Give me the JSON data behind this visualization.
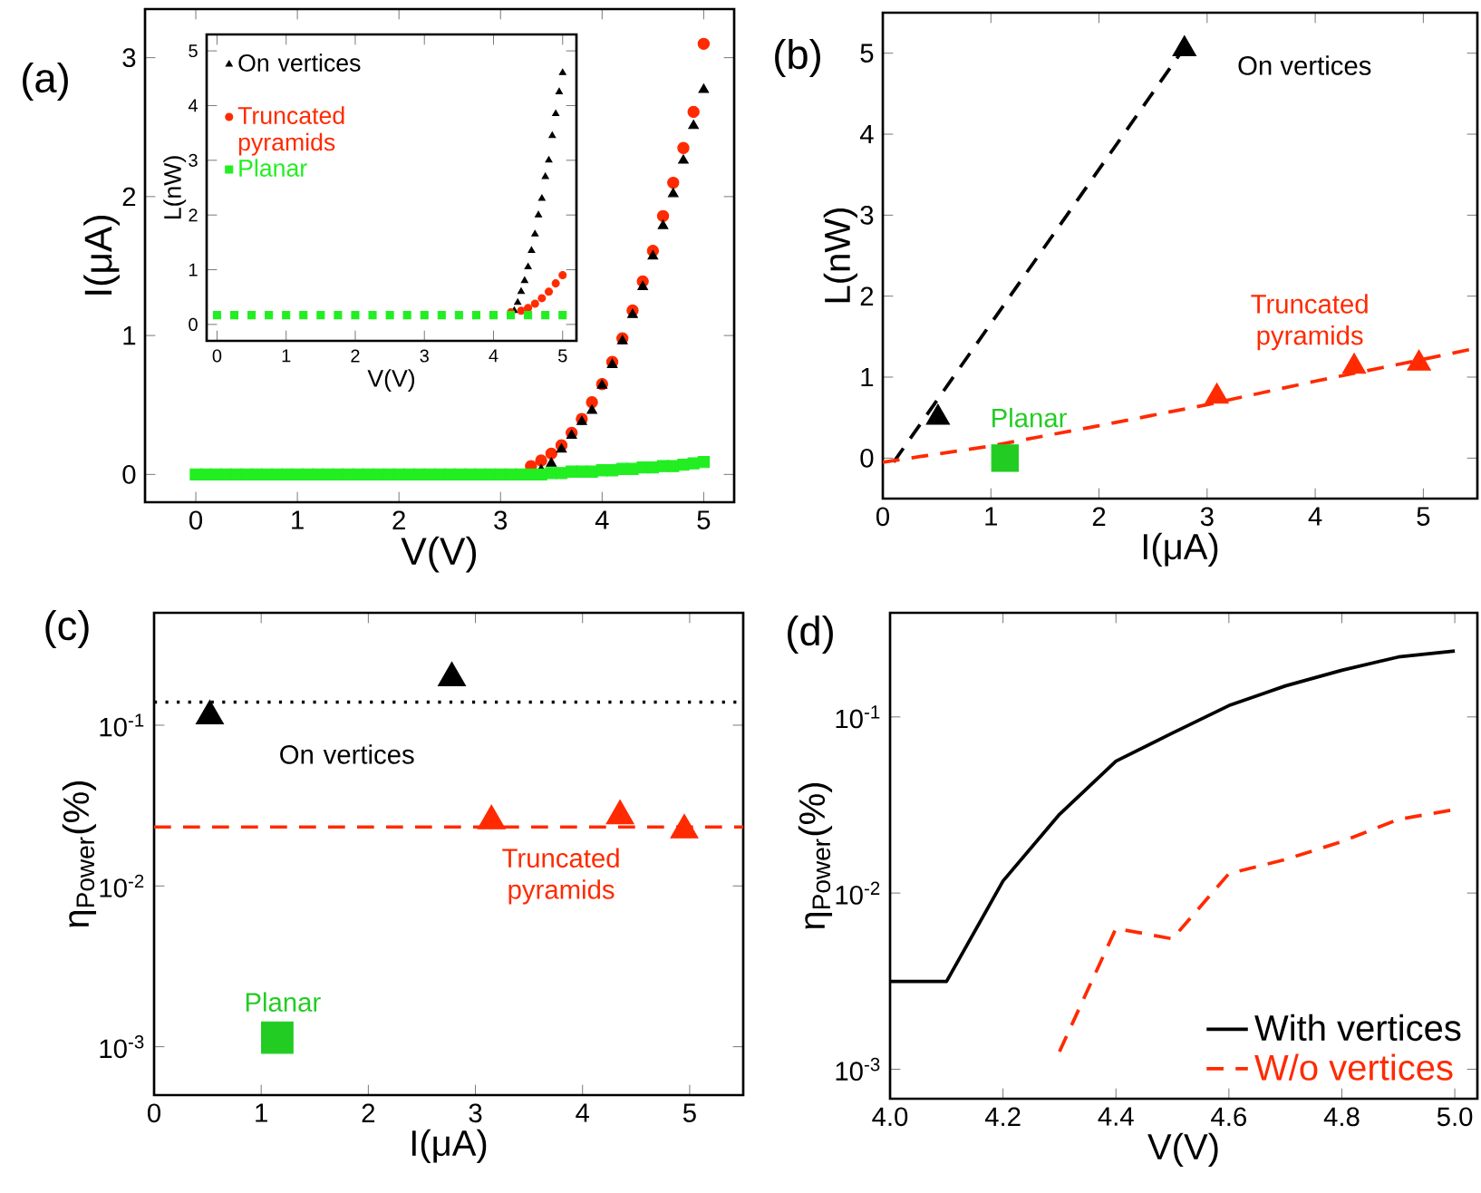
{
  "chart_data": [
    {
      "type": "scatter",
      "title": "(a)",
      "xlabel": "V(V)",
      "ylabel": "I(μA)",
      "xlim": [
        -0.5,
        5.3
      ],
      "ylim": [
        -0.2,
        3.35
      ],
      "xticks": [
        0,
        1,
        2,
        3,
        4,
        5
      ],
      "yticks": [
        0,
        1,
        2,
        3
      ],
      "x": [
        0,
        0.1,
        0.2,
        0.3,
        0.4,
        0.5,
        0.6,
        0.7,
        0.8,
        0.9,
        1.0,
        1.1,
        1.2,
        1.3,
        1.4,
        1.5,
        1.6,
        1.7,
        1.8,
        1.9,
        2.0,
        2.1,
        2.2,
        2.3,
        2.4,
        2.5,
        2.6,
        2.7,
        2.8,
        2.9,
        3.0,
        3.1,
        3.2,
        3.3,
        3.4,
        3.5,
        3.6,
        3.7,
        3.8,
        3.9,
        4.0,
        4.1,
        4.2,
        4.3,
        4.4,
        4.5,
        4.6,
        4.7,
        4.8,
        4.9,
        5.0
      ],
      "series": [
        {
          "color": "#ff2a00",
          "marker": "circle",
          "values": [
            null,
            null,
            null,
            null,
            null,
            null,
            null,
            null,
            null,
            null,
            null,
            null,
            null,
            null,
            null,
            null,
            null,
            null,
            null,
            null,
            null,
            null,
            null,
            null,
            null,
            null,
            null,
            null,
            null,
            null,
            null,
            null,
            null,
            0.06,
            0.1,
            0.15,
            0.21,
            0.3,
            0.4,
            0.52,
            0.65,
            0.81,
            0.98,
            1.18,
            1.39,
            1.61,
            1.86,
            2.1,
            2.35,
            2.61,
            3.1
          ]
        },
        {
          "color": "#000000",
          "marker": "triangle",
          "values": [
            null,
            null,
            null,
            null,
            null,
            null,
            null,
            null,
            null,
            null,
            null,
            null,
            null,
            null,
            null,
            null,
            null,
            null,
            null,
            null,
            null,
            null,
            null,
            null,
            null,
            null,
            null,
            null,
            null,
            null,
            null,
            null,
            null,
            null,
            0.03,
            0.08,
            0.18,
            0.28,
            0.38,
            0.46,
            0.64,
            0.79,
            0.96,
            1.15,
            1.35,
            1.57,
            1.79,
            2.02,
            2.26,
            2.51,
            2.77
          ]
        },
        {
          "color": "#22ee22",
          "marker": "square",
          "values": [
            0,
            0,
            0,
            0,
            0,
            0,
            0,
            0,
            0,
            0,
            0,
            0,
            0,
            0,
            0,
            0,
            0,
            0,
            0,
            0,
            0,
            0,
            0,
            0,
            0,
            0,
            0,
            0,
            0,
            0,
            0,
            0,
            0,
            0,
            0,
            0.01,
            0.01,
            0.02,
            0.02,
            0.02,
            0.03,
            0.03,
            0.04,
            0.04,
            0.05,
            0.05,
            0.06,
            0.06,
            0.07,
            0.08,
            0.09
          ]
        }
      ]
    },
    {
      "type": "scatter",
      "xlabel": "V(V)",
      "ylabel": "L(nW)",
      "xlim": [
        -0.15,
        5.2
      ],
      "ylim": [
        -0.3,
        5.3
      ],
      "xticks": [
        0,
        1,
        2,
        3,
        4,
        5
      ],
      "yticks": [
        0,
        1,
        2,
        3,
        4,
        5
      ],
      "legend": "top left",
      "series": [
        {
          "name": "On vertices",
          "color": "#000000",
          "marker": "triangle",
          "x": [
            4.3,
            4.35,
            4.4,
            4.45,
            4.5,
            4.55,
            4.6,
            4.65,
            4.7,
            4.75,
            4.8,
            4.85,
            4.9,
            4.95,
            5.0
          ],
          "values": [
            0.25,
            0.4,
            0.6,
            0.8,
            1.05,
            1.35,
            1.65,
            2.0,
            2.3,
            2.7,
            3.0,
            3.45,
            3.85,
            4.25,
            4.6
          ]
        },
        {
          "name": "Truncated pyramids",
          "color": "#ff2a00",
          "marker": "circle",
          "x": [
            4.25,
            4.4,
            4.5,
            4.6,
            4.7,
            4.8,
            4.9,
            5.0
          ],
          "values": [
            0.22,
            0.25,
            0.3,
            0.38,
            0.48,
            0.6,
            0.75,
            0.9
          ]
        },
        {
          "name": "Planar",
          "color": "#22ee22",
          "marker": "square",
          "x": [
            0,
            0.25,
            0.5,
            0.75,
            1,
            1.25,
            1.5,
            1.75,
            2,
            2.25,
            2.5,
            2.75,
            3,
            3.25,
            3.5,
            3.75,
            4,
            4.25,
            4.5,
            4.75,
            5
          ],
          "values": [
            0.17,
            0.17,
            0.17,
            0.17,
            0.17,
            0.17,
            0.17,
            0.17,
            0.17,
            0.17,
            0.17,
            0.17,
            0.17,
            0.17,
            0.17,
            0.17,
            0.17,
            0.17,
            0.17,
            0.17,
            0.17
          ]
        }
      ]
    },
    {
      "type": "scatter",
      "title": "(b)",
      "xlabel": "I(μA)",
      "ylabel": "L(nW)",
      "xlim": [
        0,
        5.5
      ],
      "ylim": [
        -0.5,
        5.5
      ],
      "xticks": [
        0,
        1,
        2,
        3,
        4,
        5
      ],
      "yticks": [
        0,
        1,
        2,
        3,
        4,
        5
      ],
      "series": [
        {
          "name": "On vertices",
          "color": "#000000",
          "marker": "triangle",
          "x": [
            0.51,
            2.79
          ],
          "values": [
            0.5,
            5.05
          ]
        },
        {
          "name": "Truncated pyramids",
          "color": "#ff2a00",
          "marker": "triangle",
          "x": [
            3.09,
            4.36,
            4.96
          ],
          "values": [
            0.76,
            1.13,
            1.17
          ]
        },
        {
          "name": "Planar",
          "color": "#22cc22",
          "marker": "square",
          "x": [
            1.13
          ],
          "values": [
            0.0
          ]
        },
        {
          "type": "line",
          "color": "#000000",
          "line_style": "dashed",
          "x": [
            0.1,
            2.78
          ],
          "values": [
            -0.05,
            5.05
          ]
        },
        {
          "type": "line",
          "color": "#ff2a00",
          "line_style": "dashed",
          "x": [
            0,
            1,
            2,
            3,
            4,
            5,
            5.5
          ],
          "values": [
            -0.05,
            0.15,
            0.4,
            0.66,
            0.95,
            1.22,
            1.36
          ]
        }
      ]
    },
    {
      "type": "scatter",
      "title": "(c)",
      "xlabel": "I(μA)",
      "ylabel": "η$_{Power}$(%)",
      "log": "y",
      "xlim": [
        0,
        5.5
      ],
      "ylim": [
        0.0005,
        0.5
      ],
      "xticks": [
        0,
        1,
        2,
        3,
        4,
        5
      ],
      "yticks": [
        {
          "value": 0.001,
          "label": "10$^{-3}$"
        },
        {
          "value": 0.01,
          "label": "10$^{-2}$"
        },
        {
          "value": 0.1,
          "label": "10$^{-1}$"
        }
      ],
      "series": [
        {
          "name": "On vertices",
          "color": "#000000",
          "marker": "triangle",
          "x": [
            0.52,
            2.78
          ],
          "values": [
            0.114,
            0.197
          ]
        },
        {
          "name": "Truncated pyramids",
          "color": "#ff2a00",
          "marker": "triangle",
          "x": [
            3.15,
            4.35,
            4.95
          ],
          "values": [
            0.0254,
            0.0273,
            0.0223
          ]
        },
        {
          "name": "Planar",
          "color": "#22cc22",
          "marker": "square",
          "x": [
            1.15
          ],
          "values": [
            0.00114
          ]
        }
      ],
      "ref_lines": [
        {
          "axis": "y",
          "value": 0.139,
          "color": "#000000",
          "line_style": "dotted"
        },
        {
          "axis": "y",
          "value": 0.0233,
          "color": "#ff2a00",
          "line_style": "dashed"
        }
      ]
    },
    {
      "type": "line",
      "title": "(d)",
      "xlabel": "V(V)",
      "ylabel": "η$_{Power}$(%)",
      "log": "y",
      "xlim": [
        4.0,
        5.04
      ],
      "ylim": [
        0.00068,
        0.39
      ],
      "legend": "bottom right",
      "xticks": [
        {
          "value": 4.0,
          "label": "4.0"
        },
        {
          "value": 4.2,
          "label": "4.2"
        },
        {
          "value": 4.4,
          "label": "4.4"
        },
        {
          "value": 4.6,
          "label": "4.6"
        },
        {
          "value": 4.8,
          "label": "4.8"
        },
        {
          "value": 5.0,
          "label": "5.0"
        }
      ],
      "yticks": [
        {
          "value": 0.001,
          "label": "10$^{-3}$"
        },
        {
          "value": 0.01,
          "label": "10$^{-2}$"
        },
        {
          "value": 0.1,
          "label": "10$^{-1}$"
        }
      ],
      "series": [
        {
          "name": "With vertices",
          "color": "#000000",
          "line_style": "solid",
          "x": [
            4.0,
            4.1,
            4.2,
            4.3,
            4.4,
            4.5,
            4.6,
            4.7,
            4.8,
            4.9,
            5.0
          ],
          "values": [
            0.00315,
            0.00315,
            0.0117,
            0.028,
            0.0561,
            0.081,
            0.116,
            0.15,
            0.184,
            0.219,
            0.237
          ]
        },
        {
          "name": "W/o  vertices",
          "color": "#ff2a00",
          "line_style": "dashed",
          "x": [
            4.3,
            4.4,
            4.5,
            4.6,
            4.7,
            4.8,
            4.9,
            5.0
          ],
          "values": [
            0.00126,
            0.0063,
            0.0055,
            0.0129,
            0.0155,
            0.0196,
            0.0262,
            0.0298
          ]
        }
      ]
    }
  ]
}
